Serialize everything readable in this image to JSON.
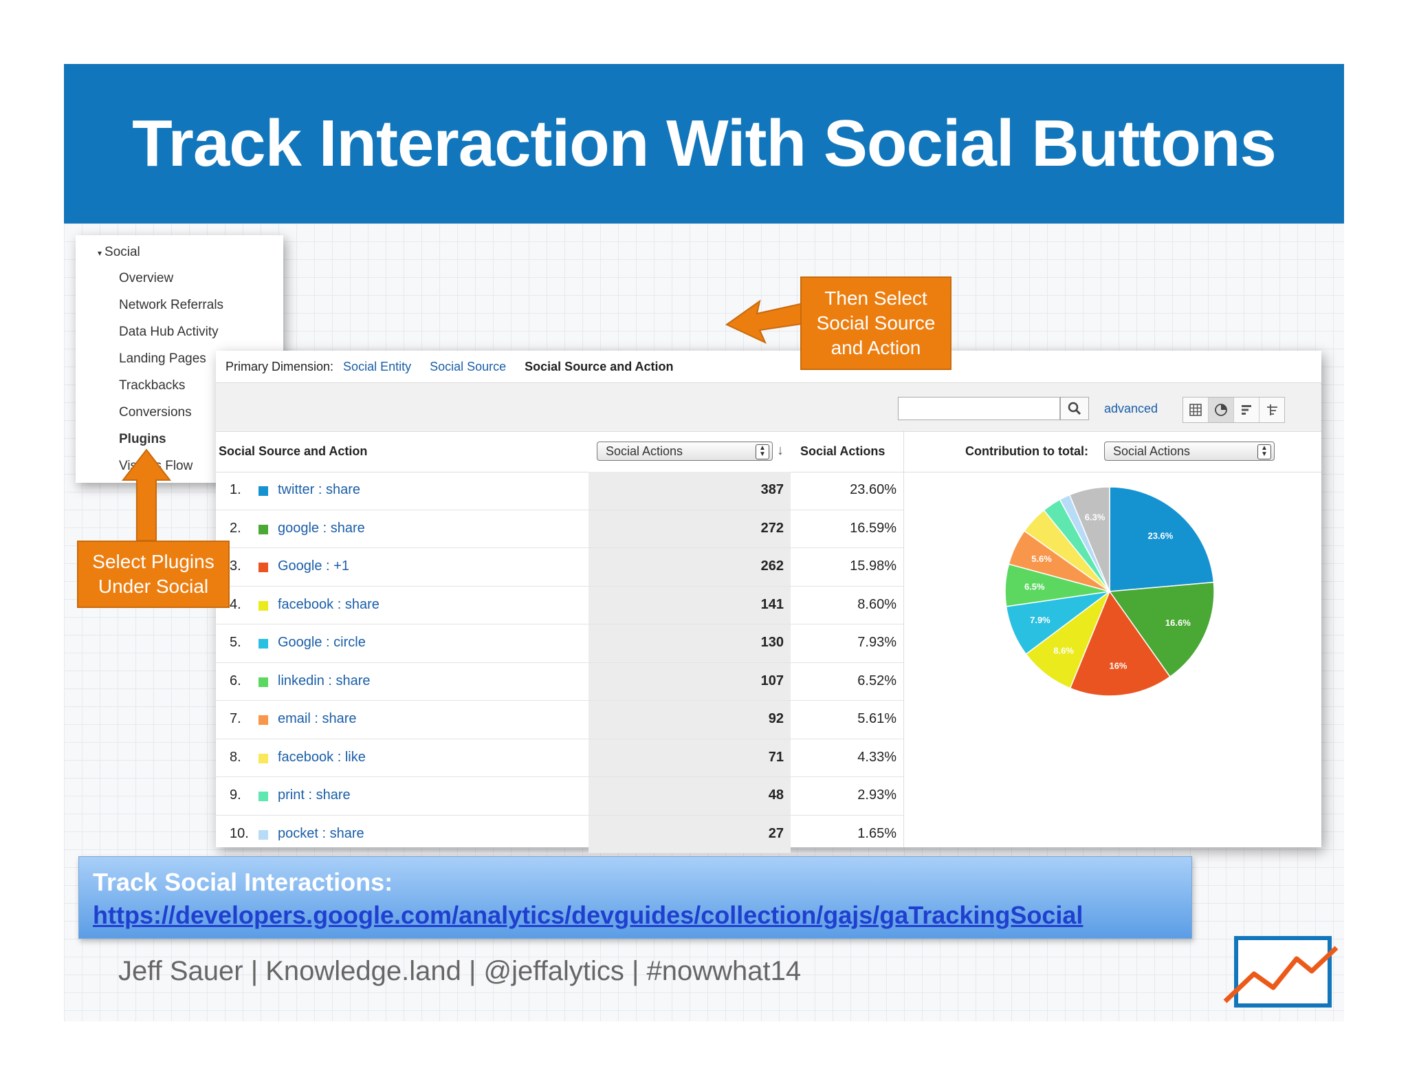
{
  "slide": {
    "title": "Track Interaction With Social Buttons"
  },
  "nav": {
    "section": "Social",
    "items": [
      "Overview",
      "Network Referrals",
      "Data Hub Activity",
      "Landing Pages",
      "Trackbacks",
      "Conversions",
      "Plugins",
      "Visitors Flow"
    ],
    "active_item": "Plugins"
  },
  "panel": {
    "primary_dimension_label": "Primary Dimension:",
    "dimensions": [
      "Social Entity",
      "Social Source",
      "Social Source and Action"
    ],
    "active_dimension": "Social Source and Action",
    "search": {
      "value": "",
      "placeholder": ""
    },
    "advanced_label": "advanced",
    "view_icons": [
      "table-view-icon",
      "pie-view-icon",
      "bar-view-icon",
      "pivot-view-icon"
    ],
    "active_view": "pie-view-icon",
    "col_source": "Social Source and Action",
    "metric_select": "Social Actions",
    "col_actions": "Social Actions",
    "contribution_label": "Contribution to total:",
    "contribution_select": "Social Actions",
    "rows": [
      {
        "rank": "1.",
        "name": "twitter : share",
        "value": "387",
        "pct": "23.60%",
        "color": "#1592d0"
      },
      {
        "rank": "2.",
        "name": "google : share",
        "value": "272",
        "pct": "16.59%",
        "color": "#4aa834"
      },
      {
        "rank": "3.",
        "name": "Google : +1",
        "value": "262",
        "pct": "15.98%",
        "color": "#ea5420"
      },
      {
        "rank": "4.",
        "name": "facebook : share",
        "value": "141",
        "pct": "8.60%",
        "color": "#eaea1c"
      },
      {
        "rank": "5.",
        "name": "Google : circle",
        "value": "130",
        "pct": "7.93%",
        "color": "#2ac0e2"
      },
      {
        "rank": "6.",
        "name": "linkedin : share",
        "value": "107",
        "pct": "6.52%",
        "color": "#5cd861"
      },
      {
        "rank": "7.",
        "name": "email : share",
        "value": "92",
        "pct": "5.61%",
        "color": "#f8964c"
      },
      {
        "rank": "8.",
        "name": "facebook : like",
        "value": "71",
        "pct": "4.33%",
        "color": "#f8e85a"
      },
      {
        "rank": "9.",
        "name": "print : share",
        "value": "48",
        "pct": "2.93%",
        "color": "#5ee8b0"
      },
      {
        "rank": "10.",
        "name": "pocket : share",
        "value": "27",
        "pct": "1.65%",
        "color": "#b8dcf8"
      }
    ],
    "pie": {
      "slices": [
        {
          "value": 23.6,
          "label": "23.6%",
          "color": "#1592d0"
        },
        {
          "value": 16.59,
          "label": "16.6%",
          "color": "#4aa834"
        },
        {
          "value": 15.98,
          "label": "16%",
          "color": "#ea5420"
        },
        {
          "value": 8.6,
          "label": "8.6%",
          "color": "#eaea1c"
        },
        {
          "value": 7.93,
          "label": "7.9%",
          "color": "#2ac0e2"
        },
        {
          "value": 6.52,
          "label": "6.5%",
          "color": "#5cd861"
        },
        {
          "value": 5.61,
          "label": "5.6%",
          "color": "#f8964c"
        },
        {
          "value": 4.33,
          "label": "",
          "color": "#f8e85a"
        },
        {
          "value": 2.93,
          "label": "",
          "color": "#5ee8b0"
        },
        {
          "value": 1.65,
          "label": "",
          "color": "#b8dcf8"
        },
        {
          "value": 6.26,
          "label": "6.3%",
          "color": "#c0c0c0"
        }
      ]
    }
  },
  "callouts": {
    "dimension": [
      "Then Select",
      "Social Source",
      "and Action"
    ],
    "plugins": [
      "Select Plugins",
      "Under Social"
    ]
  },
  "info": {
    "title": "Track Social Interactions:",
    "link": "https://developers.google.com/analytics/devguides/collection/gajs/gaTrackingSocial"
  },
  "footer": "Jeff Sauer | Knowledge.land | @jeffalytics | #nowwhat14",
  "colors": {
    "header": "#1176bb",
    "callout": "#ec7e10",
    "link": "#1a5ea8"
  }
}
